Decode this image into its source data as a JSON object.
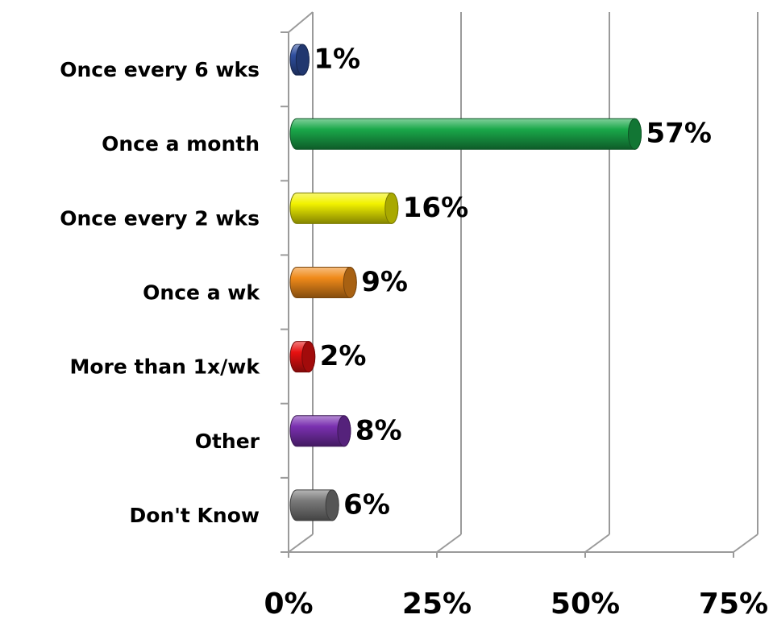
{
  "chart_data": {
    "type": "bar",
    "orientation": "horizontal",
    "categories": [
      "Once every 6 wks",
      "Once a month",
      "Once every 2 wks",
      "Once a wk",
      "More than 1x/wk",
      "Other",
      "Don't Know"
    ],
    "values": [
      1,
      57,
      16,
      9,
      2,
      8,
      6
    ],
    "value_labels": [
      "1%",
      "57%",
      "16%",
      "9%",
      "2%",
      "8%",
      "6%"
    ],
    "colors": [
      "#2f4f9f",
      "#1aa84a",
      "#f2f200",
      "#f08a1a",
      "#e81010",
      "#7a30b0",
      "#7a7a7a"
    ],
    "xlim": [
      0,
      75
    ],
    "xticks": [
      {
        "value": 0,
        "label": "0%"
      },
      {
        "value": 25,
        "label": "25%"
      },
      {
        "value": 50,
        "label": "50%"
      },
      {
        "value": 75,
        "label": "75%"
      }
    ],
    "grid": true
  }
}
